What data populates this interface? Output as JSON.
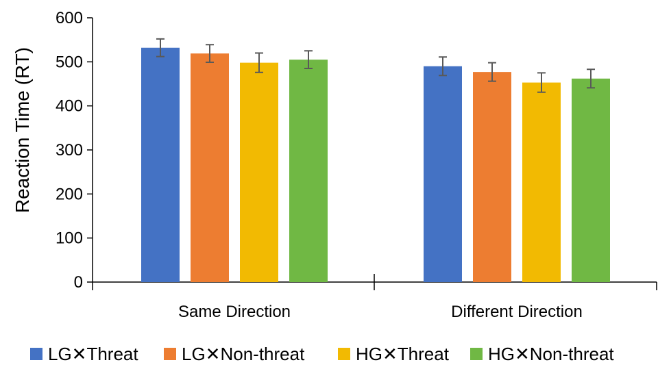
{
  "chart_data": {
    "type": "bar",
    "title": "",
    "xlabel": "",
    "ylabel": "Reaction Time (RT)",
    "ylim": [
      0,
      600
    ],
    "yticks": [
      0,
      100,
      200,
      300,
      400,
      500,
      600
    ],
    "categories": [
      "Same Direction",
      "Different Direction"
    ],
    "grid": false,
    "legend_position": "bottom",
    "series": [
      {
        "name": "LG✕Threat",
        "color": "#4472C4",
        "values": [
          532,
          490
        ],
        "errors": [
          20,
          21
        ]
      },
      {
        "name": "LG✕Non-threat",
        "color": "#ED7D31",
        "values": [
          519,
          477
        ],
        "errors": [
          20,
          21
        ]
      },
      {
        "name": "HG✕Threat",
        "color": "#F2BA02",
        "values": [
          498,
          453
        ],
        "errors": [
          22,
          22
        ]
      },
      {
        "name": "HG✕Non-threat",
        "color": "#70B844",
        "values": [
          505,
          462
        ],
        "errors": [
          20,
          21
        ]
      }
    ]
  }
}
